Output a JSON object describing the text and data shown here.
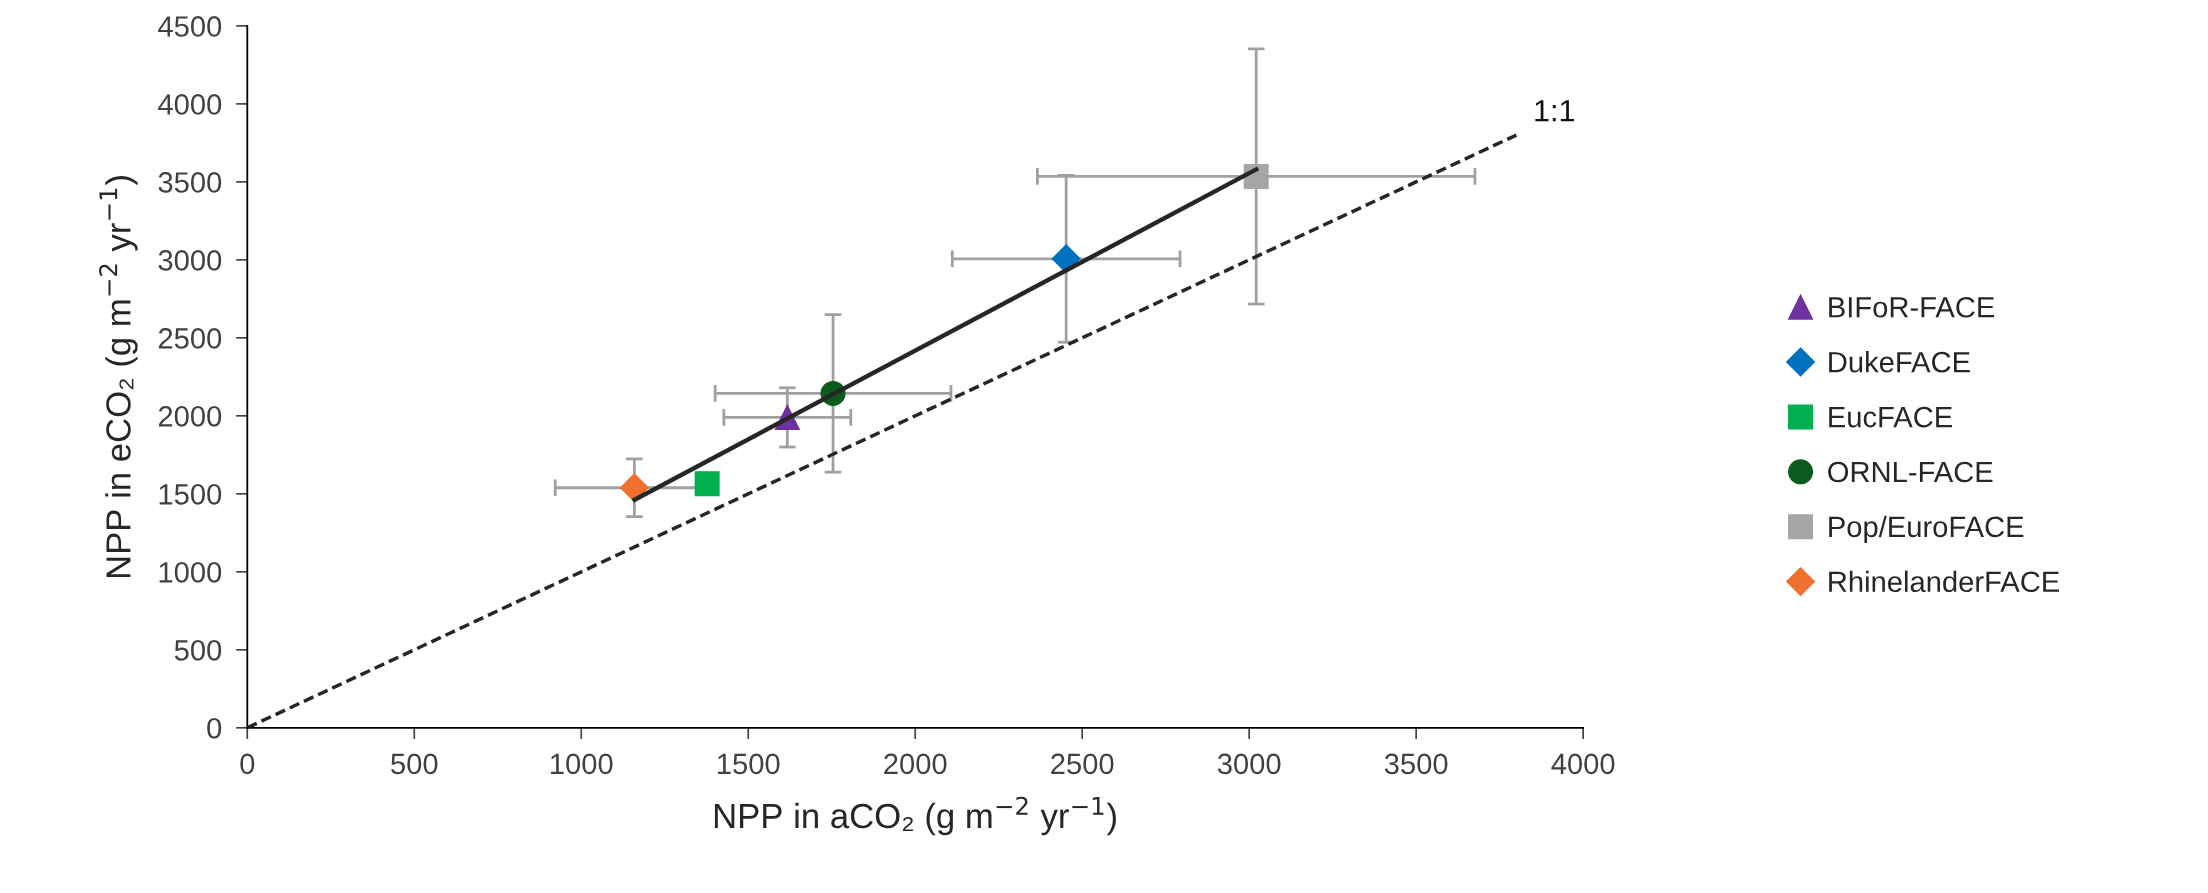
{
  "chart_data": {
    "type": "scatter",
    "xlabel": "NPP in aCO₂ (g m$^{−2}$ yr$^{−1}$)",
    "ylabel": "NPP in eCO₂ (g m$^{−2}$ yr$^{−1}$)",
    "xlim": [
      0,
      4000
    ],
    "xticks": [
      0,
      500,
      1000,
      1500,
      2000,
      2500,
      3000,
      3500,
      4000
    ],
    "ylim": [
      0,
      4500
    ],
    "yticks": [
      0,
      500,
      1000,
      1500,
      2000,
      2500,
      3000,
      3500,
      4000,
      4500
    ],
    "grid": false,
    "legend": "right",
    "annotations": [
      {
        "text": "1:1",
        "x": 3800,
        "y": 3800
      }
    ],
    "series": [
      {
        "name": "BIFoR-FACE",
        "color": "#7030a0",
        "marker": "triangle",
        "x": [
          1617
        ],
        "values": [
          1990
        ],
        "errors": [
          190
        ],
        "xerrors": [
          190
        ]
      },
      {
        "name": "DukeFACE",
        "color": "#0070c0",
        "marker": "diamond",
        "x": [
          2452
        ],
        "values": [
          3007
        ],
        "errors": [
          535
        ],
        "xerrors": [
          341
        ]
      },
      {
        "name": "EucFACE",
        "color": "#00b050",
        "marker": "square",
        "x": [
          1377
        ],
        "values": [
          1565
        ]
      },
      {
        "name": "ORNL-FACE",
        "color": "#0b5a1e",
        "marker": "circle",
        "x": [
          1754
        ],
        "values": [
          2144
        ],
        "errors": [
          505
        ],
        "xerrors": [
          353
        ]
      },
      {
        "name": "Pop/EuroFACE",
        "color": "#a6a6a6",
        "marker": "square",
        "x": [
          3021
        ],
        "values": [
          3535
        ],
        "errors": [
          818
        ],
        "xerrors": [
          655
        ]
      },
      {
        "name": "RhinelanderFACE",
        "color": "#f07030",
        "marker": "diamond",
        "x": [
          1159
        ],
        "values": [
          1539
        ],
        "errors": [
          185
        ],
        "xerrors": [
          237
        ]
      },
      {
        "type": "line",
        "color": "#262626",
        "marker": "none",
        "line_style": "solid",
        "x": [
          1160,
          3021
        ],
        "values": [
          1462,
          3580
        ]
      },
      {
        "type": "line",
        "color": "#262626",
        "marker": "none",
        "line_style": "dashed",
        "x": [
          0,
          3800
        ],
        "values": [
          0,
          3800
        ]
      }
    ]
  }
}
